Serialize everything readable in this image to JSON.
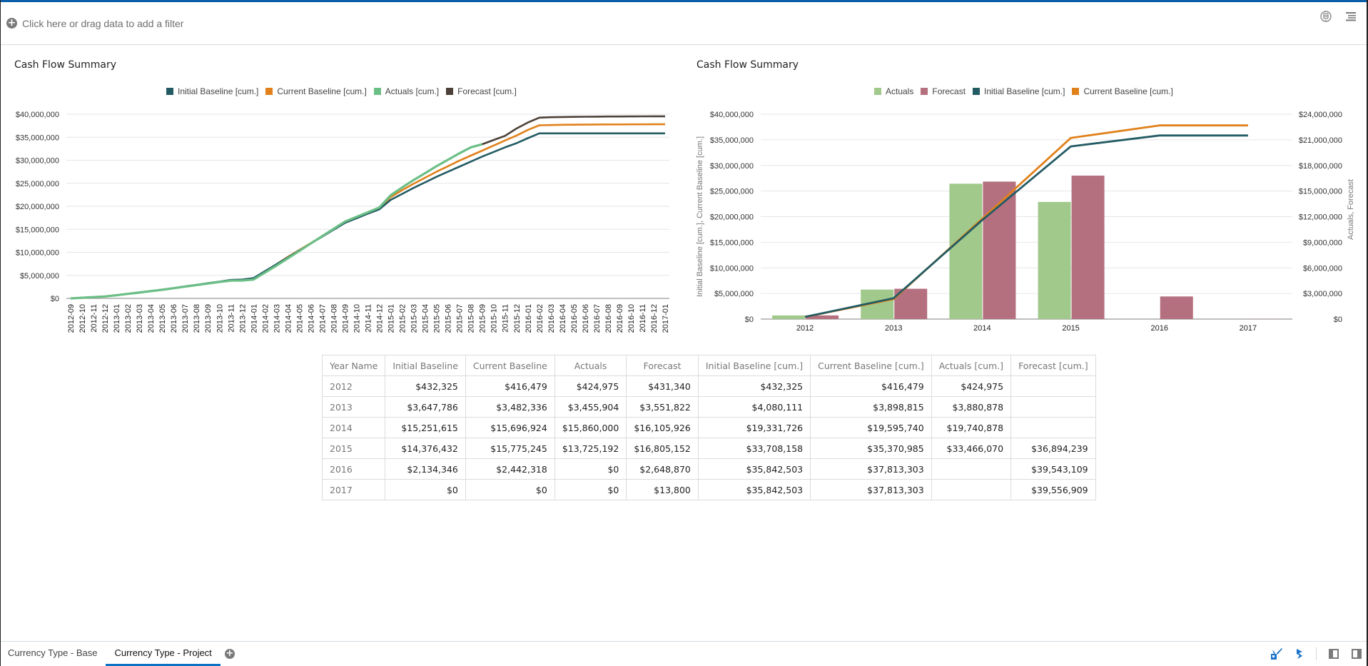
{
  "filter_bar": {
    "add_filter_text": "Click here or drag data to add a filter"
  },
  "top_icons": [
    "bot-assistant-icon",
    "menu-icon"
  ],
  "colors": {
    "initial_baseline": "#235b63",
    "current_baseline": "#e0811b",
    "actuals_line": "#6bbf86",
    "forecast_line": "#4c4038",
    "actuals_bar": "#a0c98b",
    "forecast_bar": "#b5707f",
    "accent": "#0b72c4"
  },
  "chart_data": [
    {
      "type": "line",
      "title": "Cash Flow Summary",
      "legend_position": "top-center",
      "grid": true,
      "xlabel": "",
      "ylabel": "",
      "ylim": [
        0,
        40000000
      ],
      "yticks": [
        "$0",
        "$5,000,000",
        "$10,000,000",
        "$15,000,000",
        "$20,000,000",
        "$25,000,000",
        "$30,000,000",
        "$35,000,000",
        "$40,000,000"
      ],
      "x": [
        "2012-09",
        "2012-10",
        "2012-11",
        "2012-12",
        "2013-01",
        "2013-02",
        "2013-03",
        "2013-04",
        "2013-05",
        "2013-06",
        "2013-07",
        "2013-08",
        "2013-09",
        "2013-10",
        "2013-11",
        "2013-12",
        "2014-01",
        "2014-02",
        "2014-03",
        "2014-04",
        "2014-05",
        "2014-06",
        "2014-07",
        "2014-08",
        "2014-09",
        "2014-10",
        "2014-11",
        "2014-12",
        "2015-01",
        "2015-02",
        "2015-03",
        "2015-04",
        "2015-05",
        "2015-06",
        "2015-07",
        "2015-08",
        "2015-09",
        "2015-10",
        "2015-11",
        "2015-12",
        "2016-01",
        "2016-02",
        "2016-03",
        "2016-04",
        "2016-05",
        "2016-06",
        "2016-07",
        "2016-08",
        "2016-09",
        "2016-10",
        "2016-11",
        "2016-12",
        "2017-01"
      ],
      "series": [
        {
          "name": "Initial Baseline [cum.]",
          "color_key": "initial_baseline",
          "values": [
            0,
            150000,
            300000,
            432325,
            700000,
            1000000,
            1300000,
            1600000,
            1900000,
            2250000,
            2600000,
            2950000,
            3300000,
            3650000,
            4000000,
            4080111,
            4400000,
            5900000,
            7400000,
            8900000,
            10400000,
            11900000,
            13400000,
            14900000,
            16400000,
            17400000,
            18400000,
            19331726,
            21400000,
            22700000,
            24000000,
            25200000,
            26400000,
            27500000,
            28600000,
            29700000,
            30800000,
            31800000,
            32800000,
            33708158,
            34800000,
            35842503,
            35842503,
            35842503,
            35842503,
            35842503,
            35842503,
            35842503,
            35842503,
            35842503,
            35842503,
            35842503,
            35842503
          ]
        },
        {
          "name": "Current Baseline [cum.]",
          "color_key": "current_baseline",
          "values": [
            0,
            140000,
            280000,
            416479,
            680000,
            970000,
            1260000,
            1560000,
            1860000,
            2200000,
            2540000,
            2880000,
            3220000,
            3560000,
            3850000,
            3898815,
            4200000,
            5800000,
            7400000,
            9000000,
            10500000,
            12000000,
            13500000,
            15000000,
            16500000,
            17500000,
            18500000,
            19595740,
            22000000,
            23500000,
            24900000,
            26200000,
            27500000,
            28700000,
            29900000,
            31000000,
            32100000,
            33200000,
            34300000,
            35370985,
            36600000,
            37600000,
            37650000,
            37700000,
            37720000,
            37740000,
            37760000,
            37780000,
            37790000,
            37800000,
            37805000,
            37810000,
            37813303
          ]
        },
        {
          "name": "Actuals [cum.]",
          "color_key": "actuals_line",
          "values": [
            0,
            140000,
            280000,
            424975,
            680000,
            970000,
            1260000,
            1560000,
            1860000,
            2200000,
            2540000,
            2880000,
            3220000,
            3560000,
            3850000,
            3880878,
            4100000,
            5600000,
            7100000,
            8700000,
            10300000,
            11900000,
            13500000,
            15100000,
            16700000,
            17700000,
            18700000,
            19740878,
            22400000,
            24100000,
            25700000,
            27200000,
            28700000,
            30100000,
            31500000,
            32800000,
            33466070,
            null,
            null,
            null,
            null,
            null,
            null,
            null,
            null,
            null,
            null,
            null,
            null,
            null,
            null,
            null,
            null
          ]
        },
        {
          "name": "Forecast [cum.]",
          "color_key": "forecast_line",
          "values": [
            null,
            null,
            null,
            null,
            null,
            null,
            null,
            null,
            null,
            null,
            null,
            null,
            null,
            null,
            null,
            null,
            null,
            null,
            null,
            null,
            null,
            null,
            null,
            null,
            null,
            null,
            null,
            null,
            null,
            null,
            null,
            null,
            null,
            null,
            null,
            null,
            33466070,
            34400000,
            35300000,
            36894239,
            38200000,
            39250000,
            39350000,
            39400000,
            39430000,
            39460000,
            39480000,
            39500000,
            39510000,
            39520000,
            39530000,
            39543109,
            39556909
          ]
        }
      ]
    },
    {
      "type": "bar",
      "title": "Cash Flow Summary",
      "legend_position": "top-center",
      "grid": true,
      "categories": [
        "2012",
        "2013",
        "2014",
        "2015",
        "2016",
        "2017"
      ],
      "y_left": {
        "label": "Initial Baseline [cum.], Current Baseline [cum.]",
        "ylim": [
          0,
          40000000
        ],
        "ticks": [
          "$0",
          "$5,000,000",
          "$10,000,000",
          "$15,000,000",
          "$20,000,000",
          "$25,000,000",
          "$30,000,000",
          "$35,000,000",
          "$40,000,000"
        ]
      },
      "y_right": {
        "label": "Actuals, Forecast",
        "ylim": [
          0,
          24000000
        ],
        "ticks": [
          "$0",
          "$3,000,000",
          "$6,000,000",
          "$9,000,000",
          "$12,000,000",
          "$15,000,000",
          "$18,000,000",
          "$21,000,000",
          "$24,000,000"
        ]
      },
      "legend": [
        "Actuals",
        "Forecast",
        "Initial Baseline [cum.]",
        "Current Baseline [cum.]"
      ],
      "bar_series": [
        {
          "name": "Actuals",
          "color_key": "actuals_bar",
          "axis": "right",
          "values": [
            424975,
            3455904,
            15860000,
            13725192,
            0,
            0
          ]
        },
        {
          "name": "Forecast",
          "color_key": "forecast_bar",
          "axis": "right",
          "values": [
            431340,
            3551822,
            16105926,
            16805152,
            2648870,
            13800
          ]
        }
      ],
      "line_series": [
        {
          "name": "Initial Baseline [cum.]",
          "color_key": "initial_baseline",
          "axis": "left",
          "values": [
            432325,
            4080111,
            19331726,
            33708158,
            35842503,
            35842503
          ]
        },
        {
          "name": "Current Baseline [cum.]",
          "color_key": "current_baseline",
          "axis": "left",
          "values": [
            416479,
            3898815,
            19595740,
            35370985,
            37813303,
            37813303
          ]
        }
      ]
    }
  ],
  "table": {
    "headers": [
      "Year Name",
      "Initial Baseline",
      "Current Baseline",
      "Actuals",
      "Forecast",
      "Initial Baseline [cum.]",
      "Current Baseline [cum.]",
      "Actuals [cum.]",
      "Forecast [cum.]"
    ],
    "rows": [
      [
        "2012",
        "$432,325",
        "$416,479",
        "$424,975",
        "$431,340",
        "$432,325",
        "$416,479",
        "$424,975",
        ""
      ],
      [
        "2013",
        "$3,647,786",
        "$3,482,336",
        "$3,455,904",
        "$3,551,822",
        "$4,080,111",
        "$3,898,815",
        "$3,880,878",
        ""
      ],
      [
        "2014",
        "$15,251,615",
        "$15,696,924",
        "$15,860,000",
        "$16,105,926",
        "$19,331,726",
        "$19,595,740",
        "$19,740,878",
        ""
      ],
      [
        "2015",
        "$14,376,432",
        "$15,775,245",
        "$13,725,192",
        "$16,805,152",
        "$33,708,158",
        "$35,370,985",
        "$33,466,070",
        "$36,894,239"
      ],
      [
        "2016",
        "$2,134,346",
        "$2,442,318",
        "$0",
        "$2,648,870",
        "$35,842,503",
        "$37,813,303",
        "",
        "$39,543,109"
      ],
      [
        "2017",
        "$0",
        "$0",
        "$0",
        "$13,800",
        "$35,842,503",
        "$37,813,303",
        "",
        "$39,556,909"
      ]
    ]
  },
  "bottom_bar": {
    "tabs": [
      {
        "label": "Currency Type - Base",
        "active": false
      },
      {
        "label": "Currency Type - Project",
        "active": true
      }
    ],
    "icons": [
      "paint-brush-icon",
      "lightning-icon",
      "left-panel-icon",
      "right-panel-icon"
    ]
  }
}
